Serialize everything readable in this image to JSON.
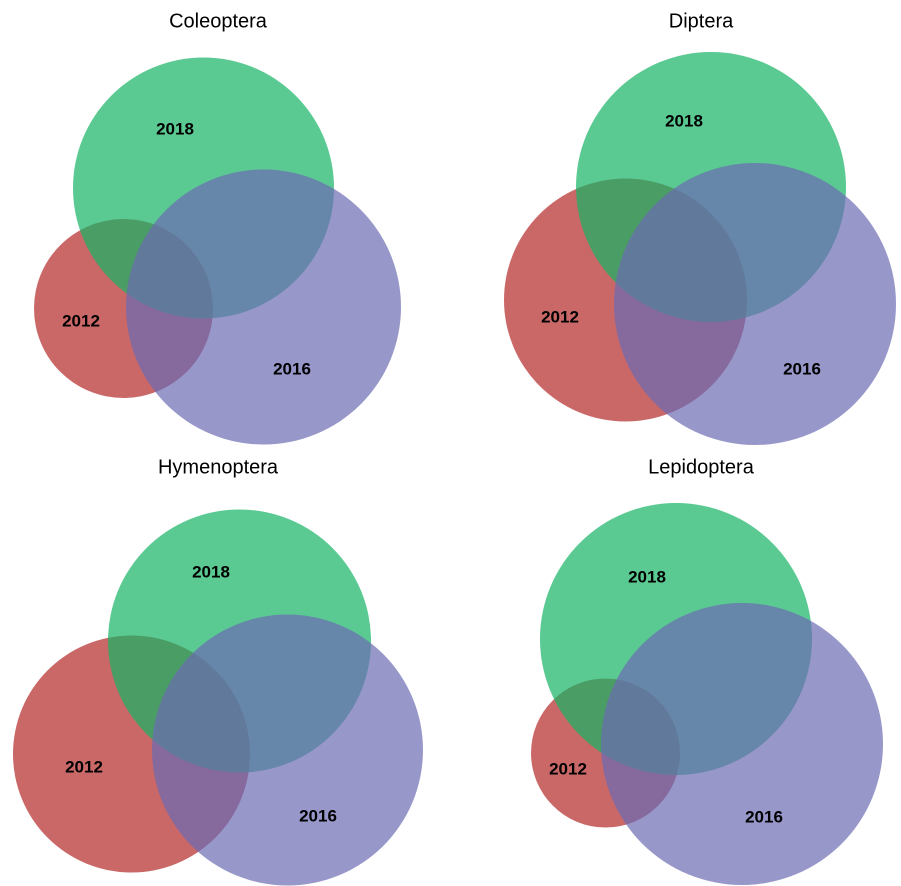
{
  "panels": [
    {
      "title": "Coleoptera",
      "sets": [
        {
          "label": "2012",
          "color": "#b42828"
        },
        {
          "label": "2018",
          "color": "#14b464"
        },
        {
          "label": "2016",
          "color": "#6b6bb4"
        }
      ]
    },
    {
      "title": "Diptera",
      "sets": [
        {
          "label": "2012",
          "color": "#b42828"
        },
        {
          "label": "2018",
          "color": "#14b464"
        },
        {
          "label": "2016",
          "color": "#6b6bb4"
        }
      ]
    },
    {
      "title": "Hymenoptera",
      "sets": [
        {
          "label": "2012",
          "color": "#b42828"
        },
        {
          "label": "2018",
          "color": "#14b464"
        },
        {
          "label": "2016",
          "color": "#6b6bb4"
        }
      ]
    },
    {
      "title": "Lepidoptera",
      "sets": [
        {
          "label": "2012",
          "color": "#b42828"
        },
        {
          "label": "2018",
          "color": "#14b464"
        },
        {
          "label": "2016",
          "color": "#6b6bb4"
        }
      ]
    }
  ]
}
